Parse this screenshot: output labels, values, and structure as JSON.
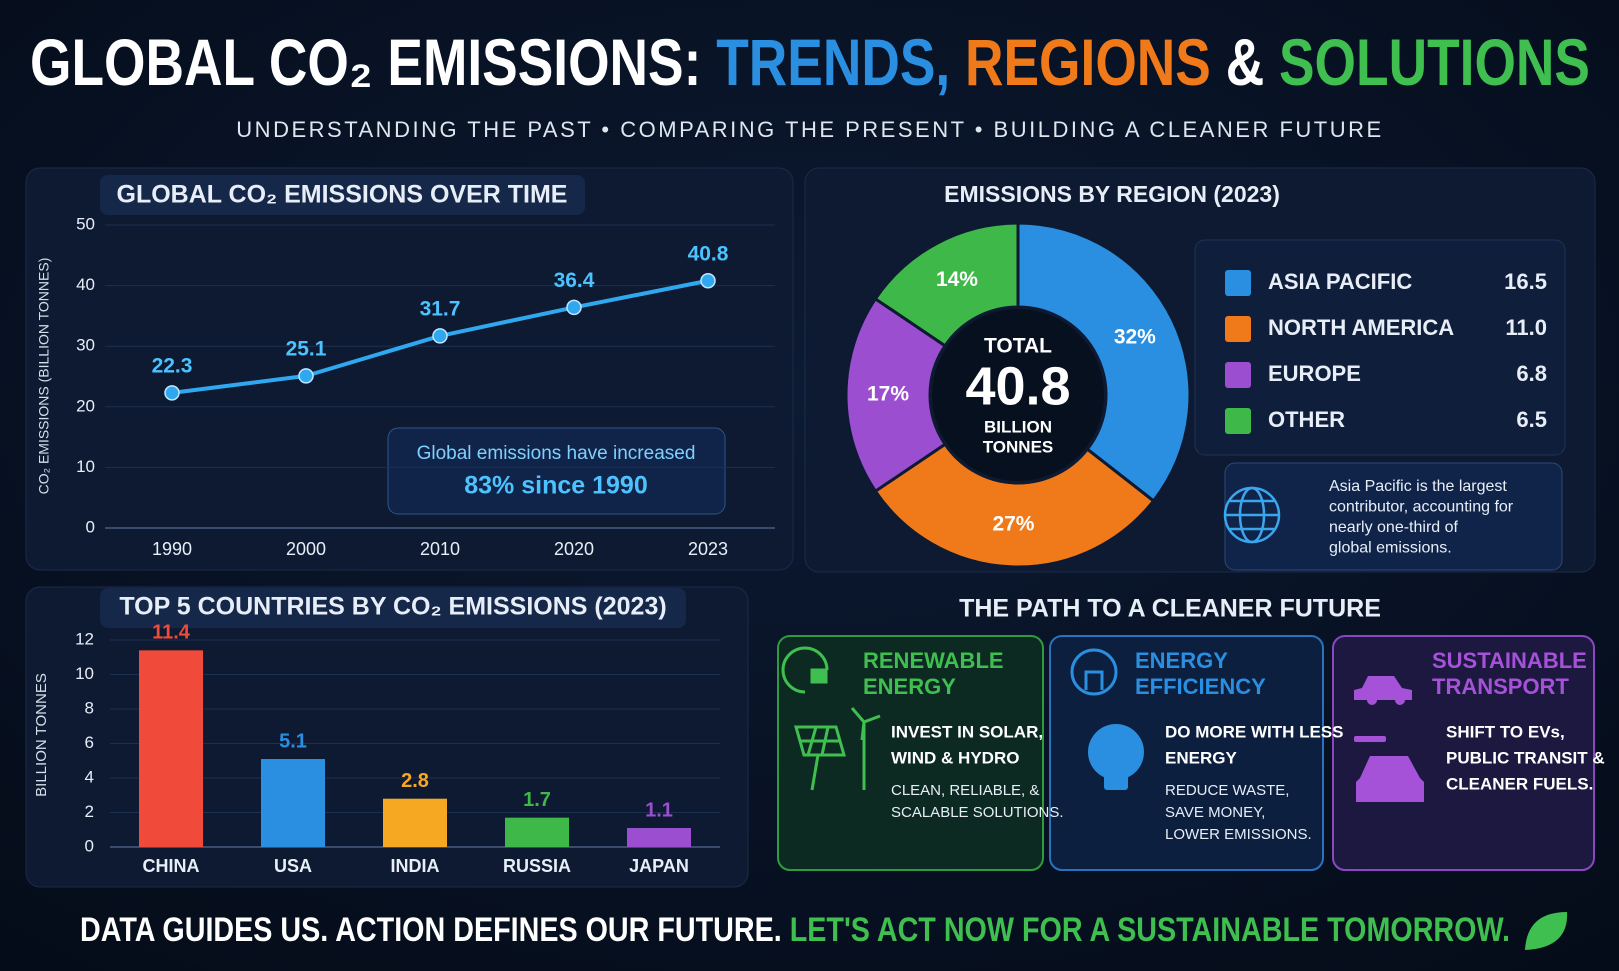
{
  "title_parts": [
    {
      "text": "GLOBAL CO₂ EMISSIONS: ",
      "color": "#ffffff"
    },
    {
      "text": "TRENDS, ",
      "color": "#2a8fe0"
    },
    {
      "text": "REGIONS ",
      "color": "#f07a1a"
    },
    {
      "text": "& ",
      "color": "#ffffff"
    },
    {
      "text": "SOLUTIONS",
      "color": "#3fbf4f"
    }
  ],
  "subtitle": "UNDERSTANDING THE PAST • COMPARING THE PRESENT • BUILDING A CLEANER FUTURE",
  "chart_data": [
    {
      "type": "line",
      "title": "GLOBAL CO₂ EMISSIONS OVER TIME",
      "y_label": "CO₂ EMISSIONS (BILLION TONNES)",
      "categories": [
        "1990",
        "2000",
        "2010",
        "2020",
        "2023"
      ],
      "values": [
        22.3,
        25.1,
        31.7,
        36.4,
        40.8
      ],
      "color": "#2fa8f0",
      "ylim": [
        0,
        50
      ],
      "yticks": [
        0,
        10,
        20,
        30,
        40,
        50
      ],
      "grid": true,
      "annotation": [
        "Global emissions have increased",
        "83% since 1990"
      ]
    },
    {
      "type": "pie",
      "title": "EMISSIONS BY REGION (2023)",
      "categories": [
        "ASIA PACIFIC",
        "NORTH AMERICA",
        "EUROPE",
        "OTHER"
      ],
      "values": [
        32,
        27,
        17,
        14
      ],
      "value_labels": [
        "32%",
        "27%",
        "17%",
        "14%"
      ],
      "colors": [
        "#2a8fe0",
        "#f07a1a",
        "#9b4fd0",
        "#3fb84a"
      ],
      "amounts": [
        16.5,
        11.0,
        6.8,
        6.5
      ],
      "amount_labels": [
        "16.5",
        "11.0",
        "6.8",
        "6.5"
      ],
      "center": {
        "top": "TOTAL",
        "value": 40.8,
        "bottom": [
          "BILLION",
          "TONNES"
        ]
      },
      "note": [
        "Asia Pacific is the largest",
        "contributor, accounting for",
        "nearly one-third of",
        "global emissions."
      ]
    },
    {
      "type": "bar",
      "title": "TOP 5 COUNTRIES BY CO₂ EMISSIONS (2023)",
      "y_label": "BILLION TONNES",
      "categories": [
        "CHINA",
        "USA",
        "INDIA",
        "RUSSIA",
        "JAPAN"
      ],
      "values": [
        11.4,
        5.1,
        2.8,
        1.7,
        1.1
      ],
      "colors": [
        "#f04a3a",
        "#2a8fe0",
        "#f6a823",
        "#3fb84a",
        "#9b4fd0"
      ],
      "ylim": [
        0,
        12
      ],
      "yticks": [
        0,
        2,
        4,
        6,
        8,
        10,
        12
      ],
      "grid": true
    }
  ],
  "path": {
    "title": "THE PATH TO A CLEANER FUTURE",
    "cards": [
      {
        "title": [
          "RENEWABLE",
          "ENERGY"
        ],
        "headline": [
          "INVEST IN SOLAR,",
          "WIND & HYDRO"
        ],
        "text": [
          "CLEAN, RELIABLE, &",
          "SCALABLE SOLUTIONS."
        ],
        "color": "#3fbf4f"
      },
      {
        "title": [
          "ENERGY",
          "EFFICIENCY"
        ],
        "headline": [
          "DO MORE WITH LESS",
          "ENERGY"
        ],
        "text": [
          "REDUCE WASTE,",
          "SAVE MONEY,",
          "LOWER EMISSIONS."
        ],
        "color": "#2a8fe0"
      },
      {
        "title": [
          "SUSTAINABLE",
          "TRANSPORT"
        ],
        "headline": [
          "SHIFT TO EVs,",
          "PUBLIC TRANSIT &",
          "CLEANER FUELS."
        ],
        "color": "#a552d8"
      }
    ]
  },
  "footer": [
    {
      "text": "DATA GUIDES US. ACTION DEFINES OUR FUTURE.  ",
      "color": "#ffffff"
    },
    {
      "text": "LET'S ACT NOW FOR A SUSTAINABLE TOMORROW.",
      "color": "#3fbf4f"
    }
  ]
}
